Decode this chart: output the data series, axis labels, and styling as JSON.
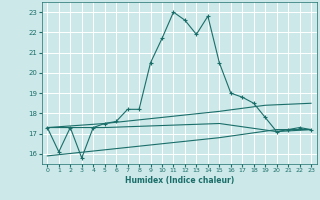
{
  "xlabel": "Humidex (Indice chaleur)",
  "xlim": [
    -0.5,
    23.5
  ],
  "ylim": [
    15.5,
    23.5
  ],
  "yticks": [
    16,
    17,
    18,
    19,
    20,
    21,
    22,
    23
  ],
  "xticks": [
    0,
    1,
    2,
    3,
    4,
    5,
    6,
    7,
    8,
    9,
    10,
    11,
    12,
    13,
    14,
    15,
    16,
    17,
    18,
    19,
    20,
    21,
    22,
    23
  ],
  "bg_color": "#cce8e8",
  "grid_color": "#b0d8d8",
  "line_color": "#1a6e6a",
  "series": [
    [
      0,
      17.3
    ],
    [
      1,
      16.1
    ],
    [
      2,
      17.3
    ],
    [
      3,
      15.8
    ],
    [
      4,
      17.3
    ],
    [
      5,
      17.5
    ],
    [
      6,
      17.6
    ],
    [
      7,
      18.2
    ],
    [
      8,
      18.2
    ],
    [
      9,
      20.5
    ],
    [
      10,
      21.7
    ],
    [
      11,
      23.0
    ],
    [
      12,
      22.6
    ],
    [
      13,
      21.9
    ],
    [
      14,
      22.8
    ],
    [
      15,
      20.5
    ],
    [
      16,
      19.0
    ],
    [
      17,
      18.8
    ],
    [
      18,
      18.5
    ],
    [
      19,
      17.8
    ],
    [
      20,
      17.1
    ],
    [
      21,
      17.2
    ],
    [
      22,
      17.3
    ],
    [
      23,
      17.2
    ]
  ],
  "line2": [
    [
      0,
      17.3
    ],
    [
      5,
      17.5
    ],
    [
      10,
      17.8
    ],
    [
      15,
      18.1
    ],
    [
      19,
      18.4
    ],
    [
      23,
      18.5
    ]
  ],
  "line3": [
    [
      0,
      17.3
    ],
    [
      5,
      17.3
    ],
    [
      10,
      17.4
    ],
    [
      15,
      17.5
    ],
    [
      20,
      17.1
    ],
    [
      23,
      17.2
    ]
  ],
  "line4": [
    [
      0,
      15.9
    ],
    [
      5,
      16.2
    ],
    [
      10,
      16.5
    ],
    [
      15,
      16.8
    ],
    [
      20,
      17.2
    ],
    [
      23,
      17.2
    ]
  ]
}
